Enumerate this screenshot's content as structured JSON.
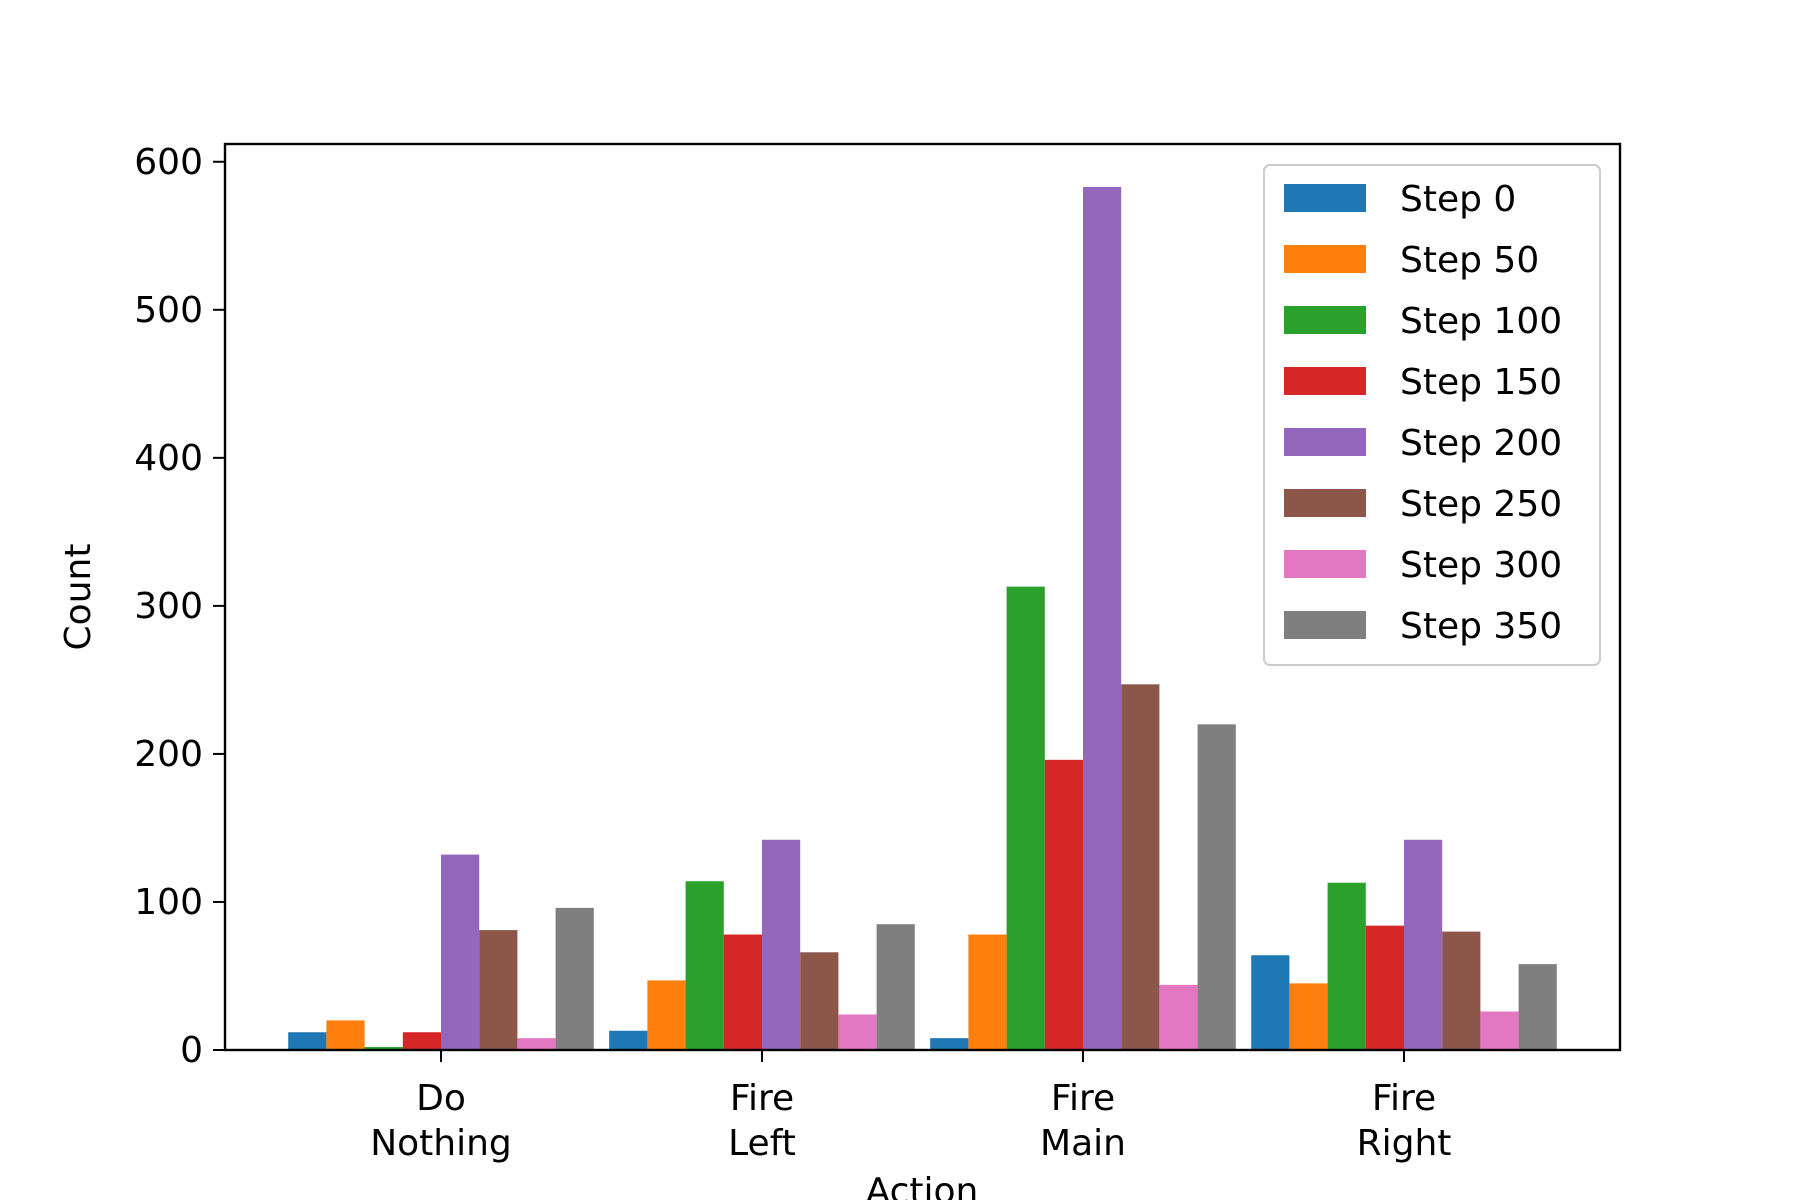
{
  "chart_data": {
    "type": "bar",
    "categories": [
      [
        "Do",
        "Nothing"
      ],
      [
        "Fire",
        "Left"
      ],
      [
        "Fire",
        "Main"
      ],
      [
        "Fire",
        "Right"
      ]
    ],
    "series": [
      {
        "name": "Step 0",
        "color": "#1f77b4",
        "values": [
          12,
          13,
          8,
          64
        ]
      },
      {
        "name": "Step 50",
        "color": "#ff7f0e",
        "values": [
          20,
          47,
          78,
          45
        ]
      },
      {
        "name": "Step 100",
        "color": "#2ca02c",
        "values": [
          2,
          114,
          313,
          113
        ]
      },
      {
        "name": "Step 150",
        "color": "#d62728",
        "values": [
          12,
          78,
          196,
          84
        ]
      },
      {
        "name": "Step 200",
        "color": "#9467bd",
        "values": [
          132,
          142,
          583,
          142
        ]
      },
      {
        "name": "Step 250",
        "color": "#8c564b",
        "values": [
          81,
          66,
          247,
          80
        ]
      },
      {
        "name": "Step 300",
        "color": "#e377c2",
        "values": [
          8,
          24,
          44,
          26
        ]
      },
      {
        "name": "Step 350",
        "color": "#7f7f7f",
        "values": [
          96,
          85,
          220,
          58
        ]
      }
    ],
    "xlabel": "Action",
    "ylabel": "Count",
    "ylim": [
      0,
      612
    ],
    "yticks": [
      0,
      100,
      200,
      300,
      400,
      500,
      600
    ],
    "legend_position": "top-right",
    "grid": false
  }
}
